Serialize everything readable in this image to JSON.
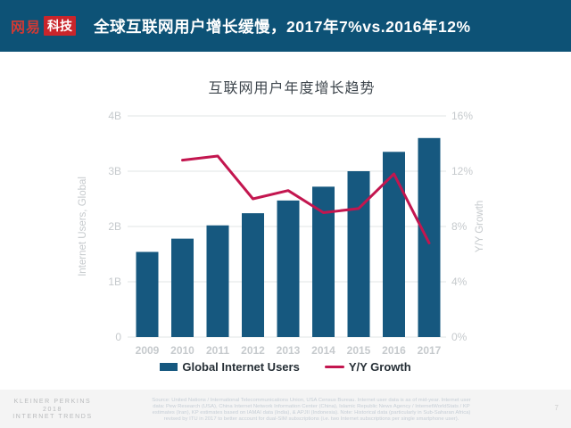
{
  "header": {
    "logo_text": "网易",
    "logo_badge": "科技",
    "title": "全球互联网用户增长缓慢，2017年7%vs.2016年12%"
  },
  "chart_data": {
    "type": "bar",
    "title": "互联网用户年度增长趋势",
    "categories": [
      "2009",
      "2010",
      "2011",
      "2012",
      "2013",
      "2014",
      "2015",
      "2016",
      "2017"
    ],
    "series": [
      {
        "name": "Global Internet Users",
        "type": "bar",
        "axis": "left",
        "color": "#16587f",
        "values": [
          1.54,
          1.78,
          2.02,
          2.24,
          2.47,
          2.72,
          3.0,
          3.35,
          3.6
        ]
      },
      {
        "name": "Y/Y Growth",
        "type": "line",
        "axis": "right",
        "color": "#c3164f",
        "values": [
          null,
          12.8,
          13.1,
          10.0,
          10.6,
          9.0,
          9.3,
          11.8,
          6.8
        ]
      }
    ],
    "left_axis": {
      "label": "Internet Users, Global",
      "ticks": [
        "0",
        "1B",
        "2B",
        "3B",
        "4B"
      ],
      "range": [
        0,
        4
      ]
    },
    "right_axis": {
      "label": "Y/Y Growth",
      "ticks": [
        "0%",
        "4%",
        "8%",
        "12%",
        "16%"
      ],
      "range": [
        0,
        16
      ]
    },
    "legend_position": "bottom",
    "grid": true
  },
  "footer": {
    "brand_lines": [
      "KLEINER PERKINS",
      "2018",
      "INTERNET TRENDS"
    ],
    "source_lines": [
      "Source: United Nations / International Telecommunications Union, USA Census Bureau. Internet user data is as of mid-year. Internet user",
      "data: Pew Research (USA), China Internet Network Information Center (China), Islamic Republic News Agency / InternetWorldStats / KP",
      "estimates (Iran), KP estimates based on IAMAI data (India), & APJII (Indonesia).  Note: Historical data (particularly in Sub-Saharan Africa)",
      "revised by ITU in 2017 to better account for dual-SIM subscriptions (i.e. two Internet subscriptions per single smartphone user)."
    ],
    "page_number": "7"
  },
  "colors": {
    "header_bg": "#0d5276",
    "bar": "#16587f",
    "line": "#c3164f",
    "grid": "#e2e4e6",
    "axis_text": "#c6cacd",
    "title_text": "#3e464d",
    "legend_text": "#262f36"
  }
}
